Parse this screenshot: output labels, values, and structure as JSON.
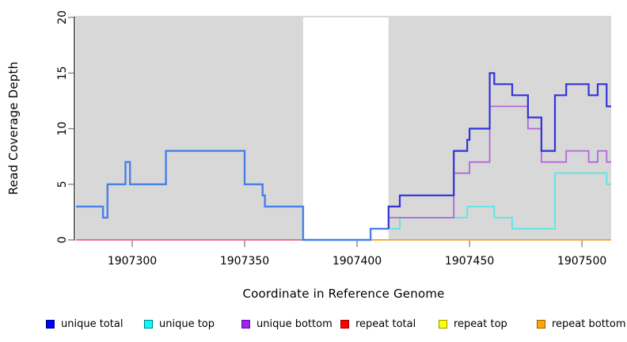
{
  "chart_data": {
    "type": "line",
    "subtype": "step",
    "title": "",
    "xlabel": "Coordinate in Reference Genome",
    "ylabel": "Read Coverage Depth",
    "xlim": [
      1907275,
      1907513
    ],
    "ylim": [
      0,
      20
    ],
    "x_ticks": [
      {
        "v": 1907300,
        "label": "1907300"
      },
      {
        "v": 1907350,
        "label": "1907350"
      },
      {
        "v": 1907400,
        "label": "1907400"
      },
      {
        "v": 1907450,
        "label": "1907450"
      },
      {
        "v": 1907500,
        "label": "1907500"
      }
    ],
    "y_ticks": [
      {
        "v": 0,
        "label": "0"
      },
      {
        "v": 5,
        "label": "5"
      },
      {
        "v": 10,
        "label": "10"
      },
      {
        "v": 15,
        "label": "15"
      },
      {
        "v": 20,
        "label": "20"
      }
    ],
    "grid": false,
    "legend_position": "bottom",
    "band_color": "#d8d8d8",
    "top_border_color": "#b2b2b2",
    "background_bands": [
      {
        "x0": 1907275,
        "x1": 1907376
      },
      {
        "x0": 1907414,
        "x1": 1907513
      }
    ],
    "gap_band": {
      "x0": 1907376,
      "x1": 1907414
    },
    "series": [
      {
        "name": "unique total",
        "line_color": "#3232D8",
        "overlap_left_color": "#4880EA",
        "split_x": 1907414,
        "end_x": 1907513,
        "draw_order": 6,
        "line_width": 2.2,
        "visible": true,
        "step_points": [
          [
            1907275,
            3
          ],
          [
            1907287,
            2
          ],
          [
            1907289,
            5
          ],
          [
            1907297,
            7
          ],
          [
            1907299,
            5
          ],
          [
            1907315,
            8
          ],
          [
            1907350,
            5
          ],
          [
            1907358,
            4
          ],
          [
            1907359,
            3
          ],
          [
            1907376,
            0
          ],
          [
            1907406,
            1
          ],
          [
            1907414,
            3
          ],
          [
            1907419,
            4
          ],
          [
            1907443,
            8
          ],
          [
            1907449,
            9
          ],
          [
            1907450,
            10
          ],
          [
            1907459,
            15
          ],
          [
            1907461,
            14
          ],
          [
            1907469,
            13
          ],
          [
            1907476,
            11
          ],
          [
            1907482,
            8
          ],
          [
            1907488,
            13
          ],
          [
            1907493,
            14
          ],
          [
            1907503,
            13
          ],
          [
            1907507,
            14
          ],
          [
            1907511,
            12
          ]
        ]
      },
      {
        "name": "unique top",
        "line_color": "#5BE6E6",
        "end_x": 1907513,
        "draw_order": 4,
        "line_width": 1.8,
        "visible": true,
        "step_points": [
          [
            1907414,
            1
          ],
          [
            1907419,
            2
          ],
          [
            1907449,
            3
          ],
          [
            1907461,
            2
          ],
          [
            1907469,
            1
          ],
          [
            1907488,
            6
          ],
          [
            1907511,
            5
          ]
        ]
      },
      {
        "name": "unique bottom",
        "line_color": "#B266DB",
        "end_x": 1907513,
        "draw_order": 5,
        "line_width": 1.8,
        "visible": true,
        "step_points": [
          [
            1907414,
            2
          ],
          [
            1907443,
            6
          ],
          [
            1907450,
            7
          ],
          [
            1907459,
            12
          ],
          [
            1907476,
            10
          ],
          [
            1907482,
            7
          ],
          [
            1907493,
            8
          ],
          [
            1907503,
            7
          ],
          [
            1907507,
            8
          ],
          [
            1907511,
            7
          ]
        ]
      },
      {
        "name": "repeat total",
        "line_color": "#EA6080",
        "end_x": 1907400,
        "draw_order": 1,
        "line_width": 1.8,
        "visible": true,
        "step_points": [
          [
            1907275,
            0
          ]
        ]
      },
      {
        "name": "repeat top",
        "line_color": "#FFFF00",
        "end_x": 1907513,
        "draw_order": 2,
        "line_width": 1.8,
        "visible": false,
        "step_points": []
      },
      {
        "name": "repeat bottom",
        "line_color": "#F6A01E",
        "end_x": 1907513,
        "draw_order": 3,
        "line_width": 1.8,
        "visible": true,
        "step_points": [
          [
            1907400,
            0
          ]
        ]
      }
    ]
  },
  "legend": {
    "items": [
      {
        "label": "unique total",
        "fill": "#0000FF",
        "border": "#000080"
      },
      {
        "label": "unique top",
        "fill": "#00FFFF",
        "border": "#008080"
      },
      {
        "label": "unique bottom",
        "fill": "#A020F0",
        "border": "#5C10A0"
      },
      {
        "label": "repeat total",
        "fill": "#FF0000",
        "border": "#990000"
      },
      {
        "label": "repeat top",
        "fill": "#FFFF00",
        "border": "#999900"
      },
      {
        "label": "repeat bottom",
        "fill": "#FFA500",
        "border": "#995E00"
      }
    ]
  },
  "axis": {
    "tick_color": "#808080",
    "axis_line_color": "#1a1a1a",
    "tick_label_color": "#000000"
  }
}
